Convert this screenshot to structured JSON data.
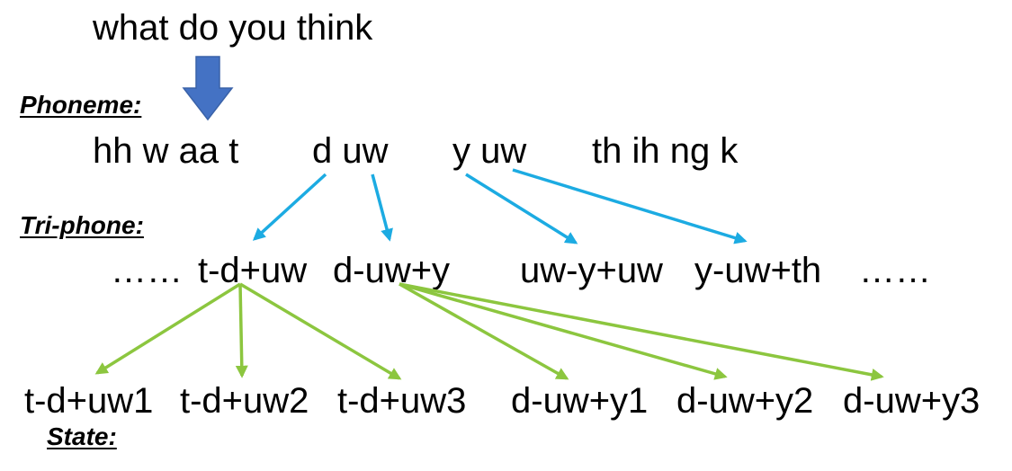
{
  "sentence": "what do you think",
  "labels": {
    "phoneme": "Phoneme:",
    "triphone": "Tri-phone:",
    "state": "State:"
  },
  "phonemes": [
    "hh w aa t",
    "d uw",
    "y uw",
    "th ih ng k"
  ],
  "triphones": [
    "……",
    "t-d+uw",
    "d-uw+y",
    "uw-y+uw",
    "y-uw+th",
    "……"
  ],
  "states": [
    "t-d+uw1",
    "t-d+uw2",
    "t-d+uw3",
    "d-uw+y1",
    "d-uw+y2",
    "d-uw+y3"
  ],
  "colors": {
    "down_arrow": "#4472C4",
    "phoneme_to_triphone": "#1CABE2",
    "triphone_to_state": "#8CC63F"
  }
}
